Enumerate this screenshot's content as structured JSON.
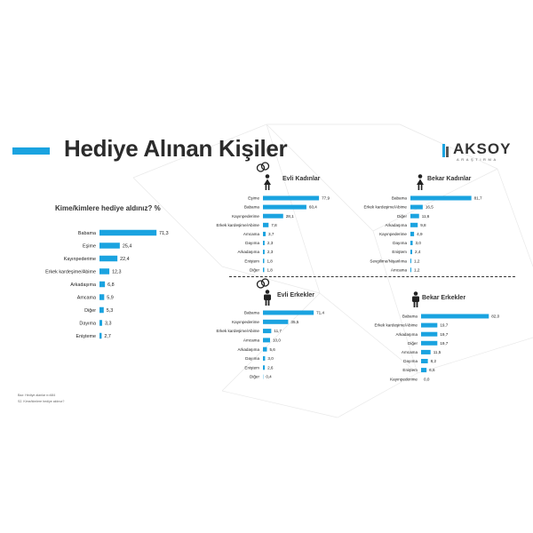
{
  "page": {
    "title": "Hediye Alınan Kişiler",
    "logo_word": "AKSOY",
    "logo_sub": "ARAŞTIRMA",
    "question": "Kime/kimlere hediye aldınız? %",
    "footnote1": "Baz: Hediye alanlar n=684",
    "footnote2": "S2. Kime/kimlere hediye aldınız?"
  },
  "colors": {
    "accent": "#1aa3e0",
    "text": "#222222"
  },
  "icons": [
    "rings-icon",
    "female-icon",
    "male-icon"
  ],
  "chart_data": [
    {
      "type": "bar",
      "orientation": "horizontal",
      "title": "Kime/kimlere hediye aldınız? %",
      "categories": [
        "Babama",
        "Eşime",
        "Kayınpederime",
        "Erkek kardeşime/Abime",
        "Arkadaşıma",
        "Amcama",
        "Diğer",
        "Dayıma",
        "Enişteme"
      ],
      "values": [
        71.3,
        25.4,
        22.4,
        12.3,
        6.8,
        5.9,
        5.3,
        3.3,
        2.7
      ],
      "labels": [
        "71,3",
        "25,4",
        "22,4",
        "12,3",
        "6,8",
        "5,9",
        "5,3",
        "3,3",
        "2,7"
      ]
    },
    {
      "type": "bar",
      "orientation": "horizontal",
      "title": "Evli Kadınlar",
      "categories": [
        "Eşime",
        "Babama",
        "Kayınpederime",
        "Erkek kardeşime/Abime",
        "Amcama",
        "Dayıma",
        "Arkadaşıma",
        "Eniştem",
        "Diğer"
      ],
      "values": [
        77.9,
        60.4,
        28.1,
        7.8,
        3.7,
        2.3,
        2.3,
        1.8,
        1.8
      ],
      "labels": [
        "77,9",
        "60,4",
        "28,1",
        "7,8",
        "3,7",
        "2,3",
        "2,3",
        "1,8",
        "1,8"
      ]
    },
    {
      "type": "bar",
      "orientation": "horizontal",
      "title": "Bekar Kadınlar",
      "categories": [
        "Babama",
        "Erkek kardeşime/Abime",
        "Diğer",
        "Arkadaşıma",
        "Kayınpederime",
        "Dayıma",
        "Eniştem",
        "Sevgilime/Nişanlıma",
        "Amcama"
      ],
      "values": [
        81.7,
        16.5,
        11.6,
        9.8,
        4.9,
        3.0,
        2.4,
        1.2,
        1.2
      ],
      "labels": [
        "81,7",
        "16,5",
        "11,6",
        "9,8",
        "4,9",
        "3,0",
        "2,4",
        "1,2",
        "1,2"
      ]
    },
    {
      "type": "bar",
      "orientation": "horizontal",
      "title": "Evli Erkekler",
      "categories": [
        "Babama",
        "Kayınpederime",
        "Erkek kardeşime/Abime",
        "Amcama",
        "Arkadaşıma",
        "Dayıma",
        "Eniştem",
        "Diğer"
      ],
      "values": [
        71.4,
        35.5,
        11.7,
        10.0,
        5.6,
        3.0,
        2.6,
        0.4
      ],
      "labels": [
        "71,4",
        "35,5",
        "11,7",
        "10,0",
        "5,6",
        "3,0",
        "2,6",
        "0,4"
      ]
    },
    {
      "type": "bar",
      "orientation": "horizontal",
      "title": "Bekar Erkekler",
      "categories": [
        "Babama",
        "Erkek kardeşime/Abime",
        "Arkadaşıma",
        "Diğer",
        "Amcama",
        "Dayıma",
        "Eniştem",
        "Kayınpederime"
      ],
      "values": [
        82.0,
        19.7,
        19.7,
        19.7,
        11.5,
        8.2,
        6.6,
        0.0
      ],
      "labels": [
        "82,0",
        "19,7",
        "19,7",
        "19,7",
        "11,5",
        "8,2",
        "6,6",
        "0,0"
      ]
    }
  ]
}
